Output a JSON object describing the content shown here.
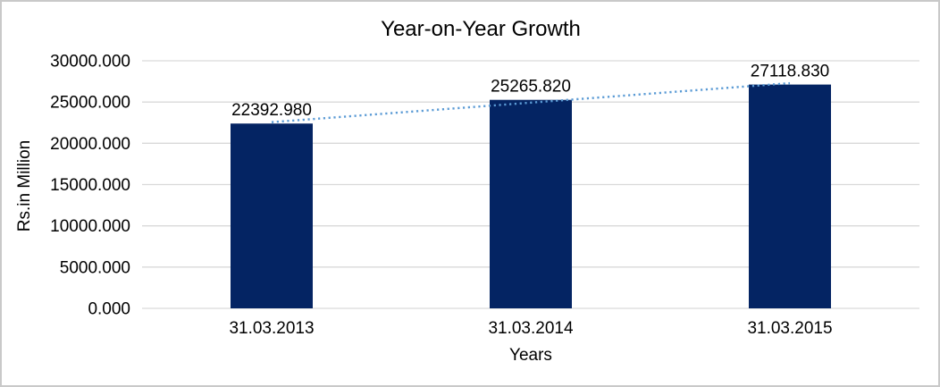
{
  "chart_data": {
    "type": "bar",
    "title": "Year-on-Year Growth",
    "xlabel": "Years",
    "ylabel": "Rs.in Million",
    "categories": [
      "31.03.2013",
      "31.03.2014",
      "31.03.2015"
    ],
    "values": [
      22392.98,
      25265.82,
      27118.83
    ],
    "data_labels": [
      "22392.980",
      "25265.820",
      "27118.830"
    ],
    "ylim": [
      0,
      30000
    ],
    "ytick_step": 5000,
    "ytick_labels": [
      "0.000",
      "5000.000",
      "10000.000",
      "15000.000",
      "20000.000",
      "25000.000",
      "30000.000"
    ],
    "grid": true,
    "legend": "none",
    "trendline": {
      "type": "linear",
      "style": "dotted"
    },
    "colors": {
      "bar": "#042463",
      "trendline": "#5b9bd5",
      "gridline": "#d9d9d9",
      "text": "#000000",
      "frame_border": "#c9c9c9"
    }
  }
}
